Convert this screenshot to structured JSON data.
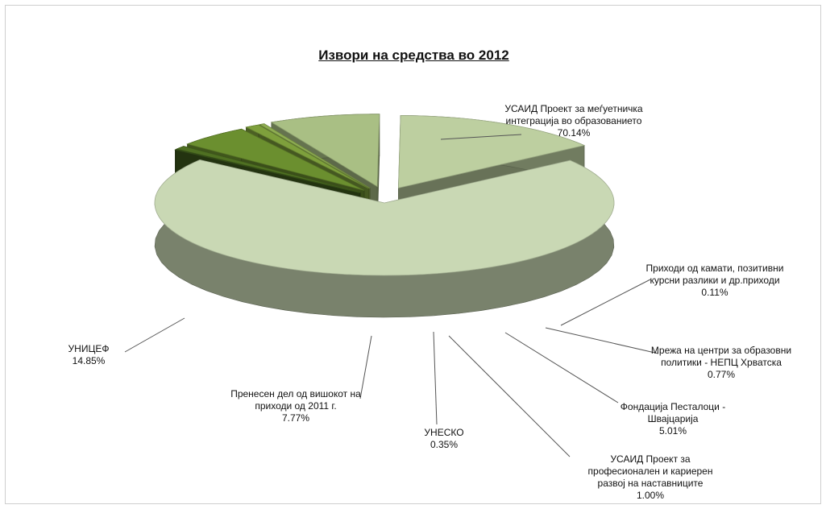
{
  "chart_data": {
    "type": "pie",
    "title": "Извори на средства во 2012",
    "slices": [
      {
        "label_lines": [
          "УСАИД Проект за меѓуетничка",
          "интеграција во образованието"
        ],
        "value": 70.14,
        "value_label": "70.14%",
        "color": "#c9d8b4"
      },
      {
        "label_lines": [
          "Приходи од камати, позитивни",
          "курсни разлики и др.приходи"
        ],
        "value": 0.11,
        "value_label": "0.11%",
        "color": "#3f5c1d"
      },
      {
        "label_lines": [
          "Мрежа на центри за образовни",
          "политики - НЕПЦ Хрватска"
        ],
        "value": 0.77,
        "value_label": "0.77%",
        "color": "#4f7022"
      },
      {
        "label_lines": [
          "Фондација Песталоци -",
          "Швајцарија"
        ],
        "value": 5.01,
        "value_label": "5.01%",
        "color": "#6b8f2f"
      },
      {
        "label_lines": [
          "УСАИД Проект за",
          "професионален и кариерен",
          "развој на наставниците"
        ],
        "value": 1.0,
        "value_label": "1.00%",
        "color": "#7ea03c"
      },
      {
        "label_lines": [
          "УНЕСКО"
        ],
        "value": 0.35,
        "value_label": "0.35%",
        "color": "#8fae52"
      },
      {
        "label_lines": [
          "Пренесен дел од вишокот на",
          "приходи од 2011 г."
        ],
        "value": 7.77,
        "value_label": "7.77%",
        "color": "#a9bf84"
      },
      {
        "label_lines": [
          "УНИЦЕФ"
        ],
        "value": 14.85,
        "value_label": "14.85%",
        "color": "#bdcfa0"
      }
    ]
  }
}
